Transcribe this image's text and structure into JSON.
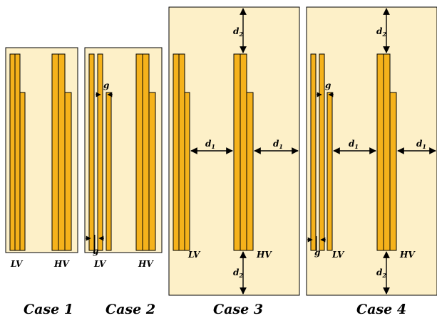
{
  "colors": {
    "tank": "#fdf0c8",
    "winding": "#f5b21b",
    "stroke": "#000000",
    "arrow": "#000000"
  },
  "cases": [
    {
      "label": "Case 1",
      "lv": "LV",
      "hv": "HV"
    },
    {
      "label": "Case 2",
      "lv": "LV",
      "hv": "HV",
      "gap_top": "g",
      "gap_bottom": "g"
    },
    {
      "label": "Case 3",
      "lv": "LV",
      "hv": "HV",
      "dims": {
        "d2": "d",
        "d2_sub": "2",
        "d1": "d",
        "d1_sub": "1"
      }
    },
    {
      "label": "Case 4",
      "lv": "LV",
      "hv": "HV",
      "gap_top": "g",
      "gap_bottom": "g",
      "dims": {
        "d2": "d",
        "d2_sub": "2",
        "d1": "d",
        "d1_sub": "1"
      }
    }
  ]
}
